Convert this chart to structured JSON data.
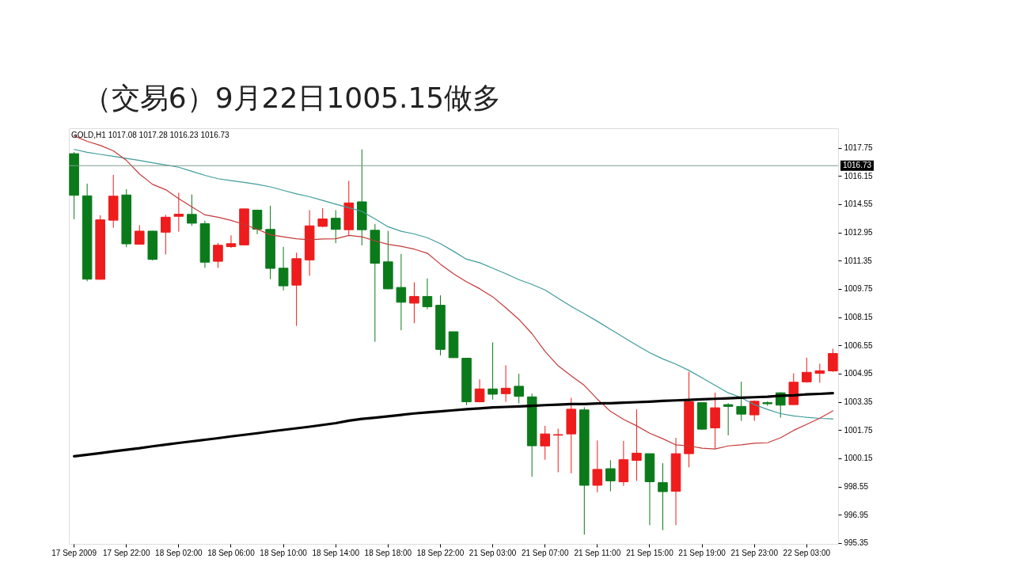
{
  "chart_data": {
    "type": "candlestick",
    "title": "（交易6）9月22日1005.15做多",
    "annotations": [
      "GOLD,H1  1017.08 1017.28 1016.23 1016.73"
    ],
    "categories": [
      "17 Sep 2009",
      null,
      null,
      null,
      "17 Sep 22:00",
      null,
      null,
      null,
      "18 Sep 02:00",
      null,
      null,
      null,
      "18 Sep 06:00",
      null,
      null,
      null,
      "18 Sep 10:00",
      null,
      null,
      null,
      "18 Sep 14:00",
      null,
      null,
      null,
      "18 Sep 18:00",
      null,
      null,
      null,
      "18 Sep 22:00",
      null,
      null,
      null,
      "21 Sep 03:00",
      null,
      null,
      null,
      "21 Sep 07:00",
      null,
      null,
      null,
      "21 Sep 11:00",
      null,
      null,
      null,
      "21 Sep 15:00",
      null,
      null,
      null,
      "21 Sep 19:00",
      null,
      null,
      null,
      "21 Sep 23:00",
      null,
      null,
      null,
      "22 Sep 03:00",
      null,
      null
    ],
    "ohlc": [
      [
        1017.41,
        1017.5,
        1013.7,
        1015.05
      ],
      [
        1015.02,
        1015.71,
        1010.18,
        1010.3
      ],
      [
        1010.29,
        1013.92,
        1010.27,
        1013.66
      ],
      [
        1013.64,
        1016.21,
        1013.21,
        1015.0
      ],
      [
        1015.07,
        1015.4,
        1012.11,
        1012.3
      ],
      [
        1012.28,
        1013.36,
        1012.26,
        1013.02
      ],
      [
        1013.02,
        1013.04,
        1011.36,
        1011.42
      ],
      [
        1012.96,
        1013.94,
        1011.7,
        1013.81
      ],
      [
        1013.86,
        1015.2,
        1012.99,
        1013.98
      ],
      [
        1013.97,
        1015.1,
        1013.33,
        1013.47
      ],
      [
        1013.44,
        1013.61,
        1010.94,
        1011.26
      ],
      [
        1011.31,
        1012.35,
        1010.94,
        1012.22
      ],
      [
        1012.14,
        1012.78,
        1012.07,
        1012.31
      ],
      [
        1012.24,
        1014.29,
        1012.22,
        1014.28
      ],
      [
        1014.21,
        1014.23,
        1012.85,
        1013.13
      ],
      [
        1013.12,
        1014.46,
        1010.3,
        1010.91
      ],
      [
        1010.92,
        1012.13,
        1009.66,
        1009.92
      ],
      [
        1009.96,
        1011.8,
        1007.65,
        1011.46
      ],
      [
        1011.39,
        1014.21,
        1010.49,
        1013.32
      ],
      [
        1013.29,
        1014.32,
        1013.24,
        1013.71
      ],
      [
        1013.75,
        1014.21,
        1012.34,
        1013.12
      ],
      [
        1013.1,
        1015.87,
        1012.78,
        1014.62
      ],
      [
        1014.68,
        1017.65,
        1012.21,
        1013.1
      ],
      [
        1013.07,
        1013.43,
        1006.75,
        1011.2
      ],
      [
        1011.28,
        1013.03,
        1009.73,
        1009.75
      ],
      [
        1009.83,
        1011.73,
        1007.4,
        1008.99
      ],
      [
        1008.94,
        1010.12,
        1007.8,
        1009.32
      ],
      [
        1009.32,
        1010.34,
        1008.6,
        1008.74
      ],
      [
        1008.82,
        1009.38,
        1005.98,
        1006.32
      ],
      [
        1007.32,
        1007.32,
        1005.85,
        1005.85
      ],
      [
        1005.82,
        1005.82,
        1003.16,
        1003.35
      ],
      [
        1003.35,
        1004.62,
        1003.32,
        1004.08
      ],
      [
        1004.08,
        1006.72,
        1003.47,
        1003.78
      ],
      [
        1003.81,
        1005.42,
        1003.35,
        1004.12
      ],
      [
        1004.23,
        1004.94,
        1003.26,
        1003.66
      ],
      [
        1003.63,
        1003.81,
        999.1,
        1000.86
      ],
      [
        1000.85,
        1001.99,
        1000.07,
        1001.53
      ],
      [
        1001.46,
        1001.83,
        999.36,
        1001.49
      ],
      [
        1001.53,
        1003.58,
        999.3,
        1002.93
      ],
      [
        1002.89,
        1003.04,
        995.82,
        998.62
      ],
      [
        998.62,
        1001.16,
        998.22,
        999.52
      ],
      [
        999.56,
        1000.04,
        998.28,
        998.87
      ],
      [
        998.82,
        1001.14,
        998.59,
        1000.07
      ],
      [
        1000.03,
        1002.92,
        998.87,
        1000.44
      ],
      [
        1000.41,
        1000.41,
        996.36,
        998.82
      ],
      [
        998.77,
        999.87,
        996.08,
        998.26
      ],
      [
        998.28,
        1001.31,
        996.36,
        1000.41
      ],
      [
        1000.41,
        1005.05,
        999.64,
        1003.35
      ],
      [
        1003.3,
        1003.3,
        1001.77,
        1001.8
      ],
      [
        1001.87,
        1003.87,
        1000.69,
        1003.01
      ],
      [
        1003.19,
        1003.27,
        1001.45,
        1003.09
      ],
      [
        1003.09,
        1004.49,
        1002.27,
        1002.65
      ],
      [
        1002.61,
        1003.43,
        1002.27,
        1003.38
      ],
      [
        1003.3,
        1003.38,
        1003.12,
        1003.24
      ],
      [
        1003.86,
        1003.89,
        1002.45,
        1003.16
      ],
      [
        1003.19,
        1004.97,
        1003.18,
        1004.46
      ],
      [
        1004.48,
        1005.85,
        1004.43,
        1005.02
      ],
      [
        1004.96,
        1005.51,
        1004.43,
        1005.11
      ],
      [
        1005.1,
        1006.36,
        1005.05,
        1006.09
      ]
    ],
    "colors": [
      "#0b7a1b",
      "#0b7a1b",
      "#ee1c1c",
      "#ee1c1c",
      "#0b7a1b",
      "#ee1c1c",
      "#0b7a1b",
      "#ee1c1c",
      "#ee1c1c",
      "#0b7a1b",
      "#0b7a1b",
      "#ee1c1c",
      "#ee1c1c",
      "#ee1c1c",
      "#0b7a1b",
      "#0b7a1b",
      "#0b7a1b",
      "#ee1c1c",
      "#ee1c1c",
      "#ee1c1c",
      "#0b7a1b",
      "#ee1c1c",
      "#0b7a1b",
      "#0b7a1b",
      "#0b7a1b",
      "#0b7a1b",
      "#ee1c1c",
      "#0b7a1b",
      "#0b7a1b",
      "#0b7a1b",
      "#0b7a1b",
      "#ee1c1c",
      "#0b7a1b",
      "#ee1c1c",
      "#0b7a1b",
      "#0b7a1b",
      "#ee1c1c",
      "#ee1c1c",
      "#ee1c1c",
      "#0b7a1b",
      "#ee1c1c",
      "#0b7a1b",
      "#ee1c1c",
      "#ee1c1c",
      "#0b7a1b",
      "#0b7a1b",
      "#ee1c1c",
      "#ee1c1c",
      "#0b7a1b",
      "#ee1c1c",
      "#0b7a1b",
      "#0b7a1b",
      "#ee1c1c",
      "#0b7a1b",
      "#0b7a1b",
      "#ee1c1c",
      "#ee1c1c",
      "#ee1c1c",
      "#ee1c1c"
    ],
    "series": [
      {
        "type": "line",
        "color": "#3f9c9c",
        "values": [
          1017.65,
          1017.49,
          1017.37,
          1017.26,
          1017.14,
          1017.03,
          1016.89,
          1016.77,
          1016.64,
          1016.41,
          1016.18,
          1015.99,
          1015.88,
          1015.78,
          1015.67,
          1015.53,
          1015.33,
          1015.13,
          1014.97,
          1014.76,
          1014.55,
          1014.35,
          1014.14,
          1013.71,
          1013.27,
          1013.01,
          1012.86,
          1012.65,
          1012.31,
          1011.88,
          1011.43,
          1011.23,
          1010.92,
          1010.61,
          1010.27,
          1010.0,
          1009.69,
          1009.22,
          1008.76,
          1008.34,
          1007.91,
          1007.46,
          1007.01,
          1006.56,
          1006.13,
          1005.78,
          1005.48,
          1005.13,
          1004.71,
          1004.28,
          1003.86,
          1003.58,
          1003.19,
          1002.92,
          1002.68,
          1002.55,
          1002.47,
          1002.41,
          1002.38
        ]
      },
      {
        "type": "line",
        "color": "#c43a3a",
        "values": [
          1018.42,
          1018.11,
          1017.88,
          1017.57,
          1017.03,
          1016.26,
          1015.67,
          1015.37,
          1014.86,
          1014.4,
          1013.94,
          1013.81,
          1013.63,
          1013.4,
          1013.13,
          1012.81,
          1012.7,
          1012.59,
          1012.53,
          1012.58,
          1012.59,
          1012.78,
          1012.7,
          1012.47,
          1012.27,
          1012.16,
          1012.0,
          1011.77,
          1011.15,
          1010.61,
          1010.15,
          1009.76,
          1009.3,
          1008.68,
          1008.02,
          1007.21,
          1006.21,
          1005.39,
          1004.82,
          1004.28,
          1003.5,
          1002.81,
          1002.35,
          1001.99,
          1001.57,
          1001.26,
          1000.91,
          1000.85,
          1000.72,
          1000.68,
          1000.85,
          1000.91,
          1001.0,
          1001.03,
          1001.31,
          1001.73,
          1002.07,
          1002.42,
          1002.84
        ]
      },
      {
        "type": "line",
        "color": "#000000",
        "values": [
          1000.26,
          1000.35,
          1000.44,
          1000.54,
          1000.63,
          1000.72,
          1000.83,
          1000.92,
          1001.02,
          1001.11,
          1001.2,
          1001.29,
          1001.39,
          1001.48,
          1001.57,
          1001.67,
          1001.76,
          1001.85,
          1001.94,
          1002.04,
          1002.14,
          1002.28,
          1002.38,
          1002.45,
          1002.53,
          1002.61,
          1002.69,
          1002.75,
          1002.81,
          1002.87,
          1002.93,
          1002.98,
          1003.03,
          1003.06,
          1003.09,
          1003.12,
          1003.16,
          1003.19,
          1003.22,
          1003.22,
          1003.26,
          1003.27,
          1003.3,
          1003.33,
          1003.36,
          1003.4,
          1003.43,
          1003.46,
          1003.49,
          1003.52,
          1003.55,
          1003.58,
          1003.61,
          1003.64,
          1003.69,
          1003.72,
          1003.77,
          1003.8,
          1003.84
        ]
      }
    ],
    "ref_lines": [
      {
        "axis": "y",
        "value": 1016.73,
        "label": "1016.73",
        "color": "#7f9a8c"
      }
    ],
    "ylim": [
      995.3,
      1018.85
    ],
    "yticks": [
      995.35,
      996.95,
      998.55,
      1000.15,
      1001.75,
      1003.35,
      1004.95,
      1006.55,
      1008.15,
      1009.75,
      1011.35,
      1012.95,
      1014.55,
      1016.15,
      1017.75
    ],
    "grid": false
  }
}
